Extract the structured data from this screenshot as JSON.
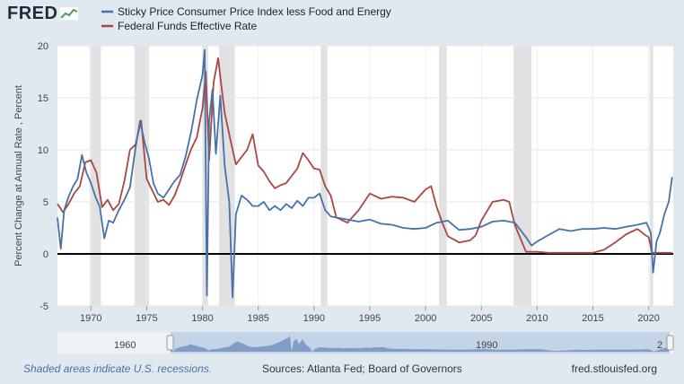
{
  "brand": {
    "logo": "FRED"
  },
  "legend": {
    "items": [
      {
        "label": "Sticky Price Consumer Price Index less Food and Energy",
        "color": "#4572a7"
      },
      {
        "label": "Federal Funds Effective Rate",
        "color": "#aa4643"
      }
    ]
  },
  "chart_data": {
    "type": "line",
    "ylabel": "Percent Change at Annual Rate , Percent",
    "xlim": [
      1967,
      2022.2
    ],
    "ylim": [
      -5,
      20
    ],
    "yticks": [
      -5,
      0,
      5,
      10,
      15,
      20
    ],
    "xticks": [
      1970,
      1975,
      1980,
      1985,
      1990,
      1995,
      2000,
      2005,
      2010,
      2015,
      2020
    ],
    "grid": true,
    "zero_line": true,
    "recessions": [
      [
        1969.9,
        1970.9
      ],
      [
        1973.9,
        1975.2
      ],
      [
        1980.0,
        1980.5
      ],
      [
        1981.5,
        1982.9
      ],
      [
        1990.6,
        1991.2
      ],
      [
        2001.2,
        2001.9
      ],
      [
        2007.9,
        2009.5
      ],
      [
        2020.1,
        2020.4
      ]
    ],
    "series": [
      {
        "name": "Sticky Price Consumer Price Index less Food and Energy",
        "color": "#4572a7",
        "x": [
          1967,
          1967.3,
          1967.6,
          1968,
          1968.4,
          1968.8,
          1969.2,
          1969.6,
          1970,
          1970.4,
          1970.8,
          1971.2,
          1971.6,
          1972,
          1972.5,
          1973,
          1973.5,
          1974,
          1974.4,
          1974.8,
          1975.2,
          1975.6,
          1976,
          1976.5,
          1977,
          1977.5,
          1978,
          1978.5,
          1979,
          1979.5,
          1980,
          1980.2,
          1980.4,
          1980.6,
          1980.9,
          1981.2,
          1981.6,
          1982,
          1982.4,
          1982.7,
          1983,
          1983.5,
          1984,
          1984.5,
          1985,
          1985.5,
          1986,
          1986.5,
          1987,
          1987.5,
          1988,
          1988.5,
          1989,
          1989.5,
          1990,
          1990.5,
          1991,
          1991.5,
          1992,
          1993,
          1994,
          1995,
          1996,
          1997,
          1998,
          1999,
          2000,
          2001,
          2002,
          2003,
          2004,
          2005,
          2006,
          2007,
          2008,
          2009,
          2009.5,
          2010,
          2011,
          2012,
          2013,
          2014,
          2015,
          2016,
          2017,
          2018,
          2019,
          2019.8,
          2020.2,
          2020.4,
          2020.7,
          2021,
          2021.4,
          2021.8,
          2022.1
        ],
        "values": [
          3.5,
          0.5,
          4.2,
          5.5,
          6.5,
          7.2,
          9.5,
          7.8,
          6.8,
          5.5,
          4.5,
          1.5,
          3.2,
          3.0,
          4.2,
          5.2,
          6.4,
          10.2,
          12.8,
          10.8,
          9.2,
          6.8,
          5.8,
          5.4,
          6.2,
          7.0,
          7.6,
          9.4,
          11.8,
          14.8,
          17.2,
          19.6,
          -4.0,
          12.8,
          15.8,
          9.6,
          15.2,
          8.4,
          5.0,
          -4.2,
          3.8,
          5.6,
          5.2,
          4.6,
          4.6,
          5.0,
          4.2,
          4.6,
          4.2,
          4.8,
          4.4,
          5.1,
          4.6,
          5.4,
          5.4,
          5.8,
          4.2,
          3.6,
          3.5,
          3.3,
          3.1,
          3.3,
          2.9,
          2.8,
          2.5,
          2.4,
          2.5,
          3.0,
          3.2,
          2.3,
          2.4,
          2.6,
          3.1,
          3.2,
          3.0,
          1.6,
          0.8,
          1.2,
          1.8,
          2.4,
          2.2,
          2.4,
          2.4,
          2.5,
          2.4,
          2.6,
          2.8,
          3.0,
          2.0,
          -1.8,
          1.2,
          2.0,
          3.8,
          5.0,
          7.4
        ]
      },
      {
        "name": "Federal Funds Effective Rate",
        "color": "#aa4643",
        "x": [
          1967,
          1967.5,
          1968,
          1968.5,
          1969,
          1969.5,
          1970,
          1970.5,
          1971,
          1971.5,
          1972,
          1972.5,
          1973,
          1973.5,
          1974,
          1974.5,
          1975,
          1975.5,
          1976,
          1976.5,
          1977,
          1977.5,
          1978,
          1978.5,
          1979,
          1979.5,
          1980,
          1980.3,
          1980.6,
          1981,
          1981.4,
          1981.8,
          1982,
          1982.5,
          1983,
          1983.5,
          1984,
          1984.5,
          1985,
          1985.5,
          1986,
          1986.5,
          1987,
          1987.5,
          1988,
          1988.5,
          1989,
          1989.5,
          1990,
          1990.5,
          1991,
          1991.5,
          1992,
          1993,
          1994,
          1995,
          1996,
          1997,
          1998,
          1999,
          2000,
          2000.5,
          2001,
          2001.5,
          2002,
          2003,
          2004,
          2004.5,
          2005,
          2006,
          2007,
          2007.5,
          2008,
          2008.5,
          2009,
          2010,
          2011,
          2012,
          2013,
          2014,
          2015,
          2016,
          2017,
          2018,
          2019,
          2019.7,
          2020,
          2020.3,
          2021,
          2022.1
        ],
        "values": [
          4.8,
          4.0,
          4.8,
          5.8,
          6.5,
          8.8,
          9.0,
          7.8,
          4.5,
          5.2,
          4.2,
          4.8,
          7.0,
          10.0,
          10.5,
          12.8,
          7.2,
          6.1,
          5.0,
          5.2,
          4.7,
          5.6,
          7.0,
          8.6,
          10.1,
          11.2,
          14.0,
          17.5,
          9.0,
          16.5,
          18.8,
          15.2,
          13.5,
          11.0,
          8.6,
          9.3,
          10.0,
          11.5,
          8.5,
          7.9,
          7.0,
          6.3,
          6.6,
          6.8,
          7.5,
          8.2,
          9.7,
          9.0,
          8.2,
          8.1,
          6.5,
          5.6,
          3.5,
          3.0,
          4.2,
          5.8,
          5.3,
          5.5,
          5.4,
          5.0,
          6.2,
          6.5,
          4.5,
          3.0,
          1.7,
          1.1,
          1.3,
          1.8,
          3.2,
          5.0,
          5.2,
          5.0,
          2.8,
          1.5,
          0.2,
          0.2,
          0.1,
          0.1,
          0.1,
          0.1,
          0.1,
          0.4,
          1.1,
          1.9,
          2.4,
          1.8,
          1.6,
          0.1,
          0.1,
          0.1
        ]
      }
    ]
  },
  "navigator": {
    "label_left": "1960",
    "label_mid": "1990",
    "label_right": "2"
  },
  "footer": {
    "left": "Shaded areas indicate U.S. recessions.",
    "middle": "Sources: Atlanta Fed; Board of Governors",
    "right": "fred.stlouisfed.org"
  }
}
